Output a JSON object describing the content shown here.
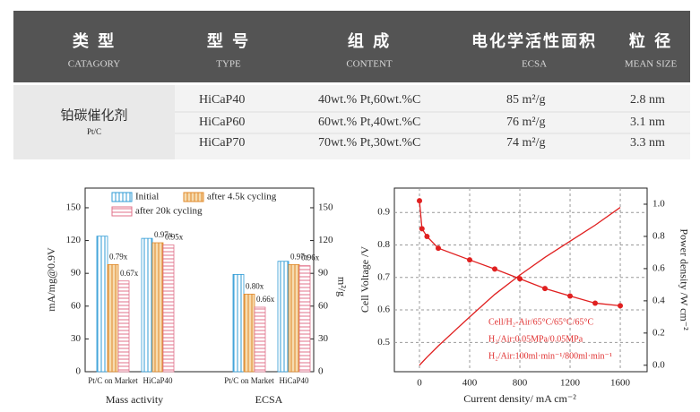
{
  "header": {
    "columns": [
      {
        "zh": "类 型",
        "en": "CATAGORY"
      },
      {
        "zh": "型 号",
        "en": "TYPE"
      },
      {
        "zh": "组 成",
        "en": "CONTENT"
      },
      {
        "zh": "电化学活性面积",
        "en": "ECSA"
      },
      {
        "zh": "粒 径",
        "en": "MEAN SIZE"
      }
    ]
  },
  "table": {
    "category": {
      "zh": "铂碳催化剂",
      "en": "Pt/C"
    },
    "rows": [
      [
        "HiCaP40",
        "40wt.% Pt,60wt.%C",
        "85 m²/g",
        "2.8 nm"
      ],
      [
        "HiCaP60",
        "60wt.% Pt,40wt.%C",
        "76 m²/g",
        "3.1 nm"
      ],
      [
        "HiCaP70",
        "70wt.% Pt,30wt.%C",
        "74 m²/g",
        "3.3 nm"
      ]
    ]
  },
  "chart_data": [
    {
      "type": "bar",
      "categories": [
        "Pt/C on Market",
        "HiCaP40",
        "Pt/C on Market",
        "HiCaP40"
      ],
      "group_labels": [
        "Mass activity",
        "ECSA"
      ],
      "ylabel": "mA/mg@0.9V",
      "y2label": "m²/g",
      "ylim": [
        0,
        168
      ],
      "yticks": [
        0,
        30,
        60,
        90,
        120,
        150
      ],
      "y2lim": [
        0,
        168
      ],
      "y2ticks": [
        0,
        30,
        60,
        90,
        120,
        150
      ],
      "series": [
        {
          "name": "Initial",
          "color": "#2f9bd6",
          "values": [
            124,
            122,
            89,
            101
          ]
        },
        {
          "name": "after 4.5k cycling",
          "color": "#e0892a",
          "values": [
            98,
            118,
            71,
            98
          ],
          "annotations": [
            "0.79x",
            "0.97x",
            "0.80x",
            "0.97x"
          ]
        },
        {
          "name": "after 20k cycling",
          "color": "#e0708a",
          "values": [
            83,
            116,
            59,
            97
          ],
          "annotations": [
            "0.67x",
            "0.95x",
            "0.66x",
            "0.96x"
          ]
        }
      ]
    },
    {
      "type": "line",
      "xlabel": "Current density/ mA cm⁻²",
      "ylabel": "Cell Voltage /V",
      "y2label": "Power density /W cm⁻²",
      "xlim": [
        -200,
        1814
      ],
      "xticks": [
        0,
        400,
        800,
        1200,
        1600
      ],
      "ylim": [
        0.41,
        0.975
      ],
      "yticks": [
        0.5,
        0.6,
        0.7,
        0.8,
        0.9
      ],
      "y2lim": [
        -0.04,
        1.1
      ],
      "y2ticks": [
        {
          "value": 0,
          "label": "0.0"
        },
        {
          "value": 0.2,
          "label": "0.2"
        },
        {
          "value": 0.4,
          "label": "0.4"
        },
        {
          "value": 0.6,
          "label": "0.6"
        },
        {
          "value": 0.8,
          "label": "0.8"
        },
        {
          "value": 1,
          "label": "1.0"
        }
      ],
      "grid": true,
      "annotations": [
        "Cell/H₂-Air/65°C/65°C/65°C",
        "H₂/Air:0.05MPa/0.05MPa",
        "H₂/Air:100ml·min⁻¹/800ml·min⁻¹"
      ],
      "series": [
        {
          "color": "#e02020",
          "markers": true,
          "x": [
            0,
            20,
            60,
            150,
            400,
            600,
            800,
            1000,
            1200,
            1400,
            1600
          ],
          "values": [
            0.936,
            0.85,
            0.826,
            0.79,
            0.754,
            0.726,
            0.696,
            0.666,
            0.643,
            0.621,
            0.613
          ]
        },
        {
          "color": "#e02020",
          "markers": false,
          "axis": "y2",
          "x": [
            0,
            20,
            60,
            150,
            400,
            600,
            800,
            1000,
            1200,
            1400,
            1600
          ],
          "values": [
            0,
            0.017,
            0.05,
            0.12,
            0.3,
            0.44,
            0.56,
            0.67,
            0.77,
            0.87,
            0.98
          ]
        }
      ]
    }
  ]
}
